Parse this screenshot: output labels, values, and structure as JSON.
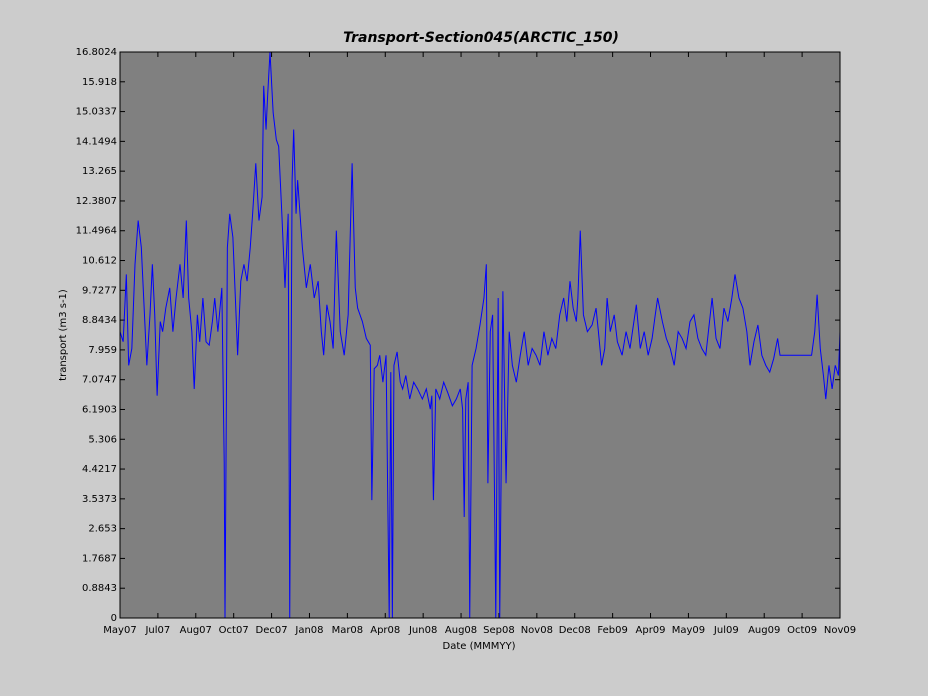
{
  "chart_data": {
    "type": "line",
    "title": "Transport-Section045(ARCTIC_150)",
    "xlabel": "Date (MMMYY)",
    "ylabel": "transport (m3 s-1)",
    "xlim": [
      0,
      912
    ],
    "ylim": [
      0,
      16.8024
    ],
    "yticks": [
      0,
      0.8843,
      1.7687,
      2.653,
      3.5373,
      4.4217,
      5.306,
      6.1903,
      7.0747,
      7.959,
      8.8434,
      9.7277,
      10.612,
      11.4964,
      12.3807,
      13.265,
      14.1494,
      15.0337,
      15.918,
      16.8024
    ],
    "xticks": [
      {
        "value": 0,
        "label": "May07"
      },
      {
        "value": 48,
        "label": "Jul07"
      },
      {
        "value": 96,
        "label": "Aug07"
      },
      {
        "value": 144,
        "label": "Oct07"
      },
      {
        "value": 192,
        "label": "Dec07"
      },
      {
        "value": 240,
        "label": "Jan08"
      },
      {
        "value": 288,
        "label": "Mar08"
      },
      {
        "value": 336,
        "label": "Apr08"
      },
      {
        "value": 384,
        "label": "Jun08"
      },
      {
        "value": 432,
        "label": "Aug08"
      },
      {
        "value": 480,
        "label": "Sep08"
      },
      {
        "value": 528,
        "label": "Nov08"
      },
      {
        "value": 576,
        "label": "Dec08"
      },
      {
        "value": 624,
        "label": "Feb09"
      },
      {
        "value": 672,
        "label": "Apr09"
      },
      {
        "value": 720,
        "label": "May09"
      },
      {
        "value": 768,
        "label": "Jul09"
      },
      {
        "value": 816,
        "label": "Aug09"
      },
      {
        "value": 864,
        "label": "Oct09"
      },
      {
        "value": 912,
        "label": "Nov09"
      }
    ],
    "grid": false,
    "series": [
      {
        "color": "#0000ff",
        "x": [
          0,
          4,
          8,
          11,
          15,
          19,
          23,
          27,
          30,
          34,
          38,
          41,
          44,
          47,
          51,
          54,
          58,
          63,
          67,
          71,
          76,
          80,
          84,
          87,
          91,
          94,
          98,
          101,
          105,
          109,
          113,
          117,
          120,
          124,
          129,
          132,
          133,
          136,
          139,
          143,
          147,
          149,
          153,
          157,
          161,
          165,
          168,
          172,
          176,
          180,
          182,
          185,
          187,
          190,
          194,
          198,
          201,
          205,
          209,
          213,
          215,
          218,
          220,
          223,
          225,
          231,
          236,
          241,
          246,
          251,
          255,
          258,
          262,
          266,
          270,
          274,
          279,
          284,
          289,
          294,
          298,
          301,
          307,
          312,
          317,
          319,
          322,
          326,
          329,
          333,
          337,
          341,
          343,
          345,
          347,
          351,
          355,
          358,
          362,
          367,
          372,
          377,
          383,
          388,
          393,
          395,
          397,
          400,
          405,
          410,
          415,
          421,
          426,
          431,
          434,
          436,
          438,
          441,
          443,
          446,
          451,
          456,
          461,
          464,
          466,
          469,
          472,
          476,
          479,
          481,
          485,
          489,
          493,
          497,
          502,
          507,
          512,
          517,
          522,
          527,
          532,
          537,
          542,
          547,
          552,
          557,
          562,
          566,
          570,
          574,
          578,
          580,
          583,
          587,
          592,
          598,
          603,
          606,
          610,
          614,
          617,
          621,
          626,
          630,
          636,
          641,
          646,
          654,
          659,
          664,
          669,
          674,
          678,
          681,
          687,
          692,
          697,
          702,
          707,
          712,
          717,
          722,
          727,
          732,
          737,
          742,
          750,
          755,
          760,
          765,
          770,
          775,
          779,
          784,
          789,
          794,
          798,
          803,
          808,
          813,
          818,
          823,
          828,
          833,
          836,
          876,
          880,
          883,
          887,
          891,
          894,
          898,
          902,
          906,
          910,
          912
        ],
        "values": [
          8.5,
          8.2,
          10.2,
          7.5,
          8.0,
          10.5,
          11.8,
          11.0,
          9.5,
          7.5,
          9.0,
          10.5,
          9.0,
          6.6,
          8.8,
          8.5,
          9.2,
          9.8,
          8.5,
          9.5,
          10.5,
          9.5,
          11.8,
          9.5,
          8.5,
          6.8,
          9.0,
          8.2,
          9.5,
          8.2,
          8.1,
          8.8,
          9.5,
          8.5,
          9.8,
          4.6,
          0,
          11.0,
          12.0,
          11.3,
          9.0,
          7.8,
          10.0,
          10.5,
          10.0,
          11.0,
          12.0,
          13.5,
          11.8,
          12.5,
          15.8,
          14.5,
          15.5,
          16.8,
          15.0,
          14.2,
          14.0,
          12.0,
          9.8,
          12.0,
          0,
          13.0,
          14.5,
          12.0,
          13.0,
          11.0,
          9.8,
          10.5,
          9.5,
          10.0,
          8.5,
          7.8,
          9.3,
          8.8,
          8.0,
          11.5,
          8.5,
          7.8,
          9.0,
          13.5,
          9.8,
          9.2,
          8.8,
          8.3,
          8.1,
          3.5,
          7.4,
          7.5,
          7.8,
          7.0,
          7.8,
          0,
          7.3,
          0,
          7.5,
          7.9,
          7.0,
          6.8,
          7.2,
          6.5,
          7.0,
          6.8,
          6.5,
          6.8,
          6.2,
          6.6,
          3.5,
          6.8,
          6.5,
          7.0,
          6.7,
          6.3,
          6.5,
          6.8,
          6.2,
          3.0,
          6.5,
          7.0,
          0,
          7.5,
          8.0,
          8.7,
          9.5,
          10.5,
          4.0,
          8.5,
          9.0,
          0,
          9.5,
          0,
          9.7,
          4.0,
          8.5,
          7.5,
          7.0,
          7.8,
          8.5,
          7.5,
          8.0,
          7.8,
          7.5,
          8.5,
          7.8,
          8.3,
          8.0,
          9.0,
          9.5,
          8.8,
          10.0,
          9.2,
          8.8,
          9.5,
          11.5,
          9.0,
          8.5,
          8.7,
          9.2,
          8.5,
          7.5,
          8.0,
          9.5,
          8.5,
          9.0,
          8.2,
          7.8,
          8.5,
          8.0,
          9.3,
          8.0,
          8.5,
          7.8,
          8.3,
          9.0,
          9.5,
          8.8,
          8.3,
          8.0,
          7.5,
          8.5,
          8.3,
          8.0,
          8.8,
          9.0,
          8.3,
          8.0,
          7.8,
          9.5,
          8.3,
          8.0,
          9.2,
          8.8,
          9.5,
          10.2,
          9.5,
          9.2,
          8.5,
          7.5,
          8.2,
          8.7,
          7.8,
          7.5,
          7.3,
          7.7,
          8.3,
          7.8,
          7.8,
          8.5,
          9.6,
          8.0,
          7.2,
          6.5,
          7.5,
          6.8,
          7.5,
          7.2,
          8.5
        ]
      }
    ]
  }
}
